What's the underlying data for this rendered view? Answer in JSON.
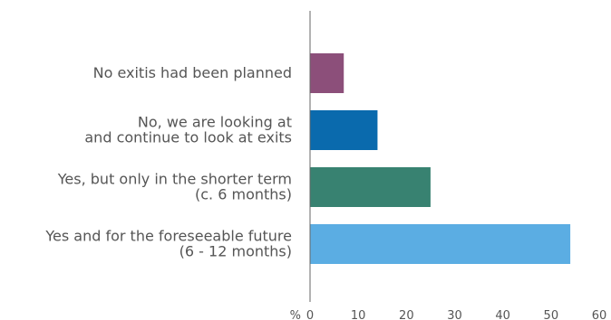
{
  "chart_data": {
    "type": "bar",
    "orientation": "horizontal",
    "title": "",
    "xlabel": "",
    "ylabel": "",
    "x_unit": "%",
    "xlim": [
      0,
      60
    ],
    "x_ticks": [
      0,
      10,
      20,
      30,
      40,
      50,
      60
    ],
    "grid": false,
    "legend": "none",
    "categories": [
      [
        "No exitis had been planned"
      ],
      [
        "No, we are looking at",
        "and continue to look at exits"
      ],
      [
        "Yes, but only in the shorter term",
        "(c. 6 months)"
      ],
      [
        "Yes and for the foreseeable future",
        "(6 - 12 months)"
      ]
    ],
    "values": [
      7,
      14,
      25,
      54
    ],
    "colors": [
      "#8c4f7a",
      "#0a6aad",
      "#388271",
      "#5bade3"
    ]
  }
}
